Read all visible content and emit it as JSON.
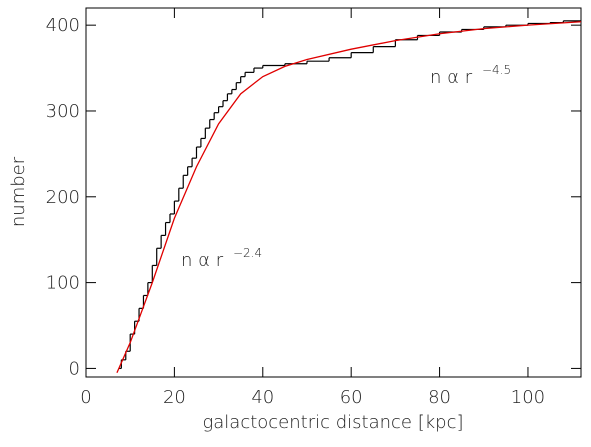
{
  "chart_data": {
    "type": "line",
    "xlabel": "galactocentric distance [kpc]",
    "ylabel": "number",
    "xlim": [
      0,
      112
    ],
    "ylim": [
      -10,
      420
    ],
    "xticks": [
      0,
      20,
      40,
      60,
      80,
      100
    ],
    "yticks": [
      0,
      100,
      200,
      300,
      400
    ],
    "annotations": [
      {
        "text": "n α r",
        "superscript": "−2.4"
      },
      {
        "text": "n α r",
        "superscript": "−4.5"
      }
    ],
    "series": [
      {
        "color": "#000000",
        "step": true,
        "x": [
          7.5,
          8,
          9,
          10,
          11,
          12,
          13,
          14,
          15,
          16,
          17,
          18,
          19,
          20,
          21,
          22,
          23,
          24,
          25,
          26,
          27,
          28,
          29,
          30,
          31,
          32,
          33,
          34,
          35,
          36,
          38,
          40,
          45,
          50,
          55,
          60,
          65,
          70,
          75,
          80,
          85,
          90,
          95,
          100,
          105,
          108
        ],
        "values": [
          0,
          10,
          20,
          40,
          55,
          70,
          85,
          100,
          120,
          140,
          155,
          170,
          180,
          195,
          210,
          225,
          235,
          245,
          258,
          268,
          280,
          290,
          298,
          305,
          312,
          320,
          325,
          333,
          340,
          345,
          350,
          353,
          355,
          358,
          362,
          368,
          375,
          383,
          388,
          392,
          395,
          398,
          400,
          402,
          403,
          405
        ]
      },
      {
        "color": "#e00000",
        "step": false,
        "x": [
          7,
          10,
          15,
          20,
          25,
          30,
          35,
          40,
          45,
          50,
          60,
          70,
          80,
          90,
          100,
          112
        ],
        "values": [
          -5,
          30,
          100,
          175,
          235,
          285,
          320,
          340,
          352,
          360,
          372,
          382,
          390,
          396,
          400,
          404
        ]
      }
    ]
  }
}
